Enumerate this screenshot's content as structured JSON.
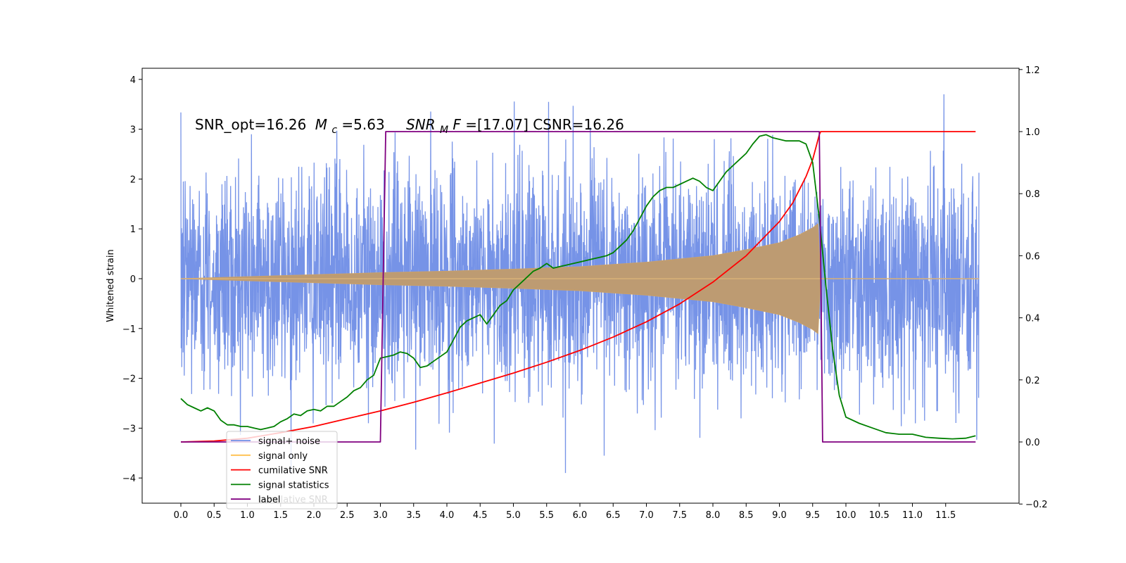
{
  "chart_data": {
    "type": "line",
    "title": "SNR_opt=16.26 $M_c$=5.63   $SNR_MF$=[17.07] CSNR=16.26",
    "title_parts": {
      "snr_opt": "SNR_opt=16.26",
      "mc_symbol": "M",
      "mc_sub": "c",
      "mc_value": "=5.63",
      "snrmf_symbol": "SNR",
      "snrmf_sub": "M",
      "snrmf_tail": "F",
      "snrmf_value": "=[17.07] CSNR=16.26"
    },
    "ylabel": "Whitened strain",
    "xlabel": "",
    "xlim": [
      -0.6,
      12.6
    ],
    "ylim": [
      -4.5,
      4.2
    ],
    "y2lim": [
      -0.2,
      1.2
    ],
    "x_ticks": [
      0.0,
      0.5,
      1.0,
      1.5,
      2.0,
      2.5,
      3.0,
      3.5,
      4.0,
      4.5,
      5.0,
      5.5,
      6.0,
      6.5,
      7.0,
      7.5,
      8.0,
      8.5,
      9.0,
      9.5,
      10.0,
      10.5,
      11.0,
      11.5
    ],
    "x_tick_labels": [
      "0.0",
      "0.5",
      "1.0",
      "1.5",
      "2.0",
      "2.5",
      "3.0",
      "3.5",
      "4.0",
      "4.5",
      "5.0",
      "5.5",
      "6.0",
      "6.5",
      "7.0",
      "7.5",
      "8.0",
      "8.5",
      "9.0",
      "9.5",
      "10.0",
      "10.5",
      "11.0",
      "11.5"
    ],
    "y_ticks": [
      4,
      3,
      2,
      1,
      0,
      -1,
      -2,
      -3,
      -4
    ],
    "y_tick_labels": [
      "4",
      "3",
      "2",
      "1",
      "0",
      "−1",
      "−2",
      "−3",
      "−4"
    ],
    "y2_ticks": [
      1.2,
      1.0,
      0.8,
      0.6,
      0.4,
      0.2,
      0.0,
      -0.2
    ],
    "y2_tick_labels": [
      "1.2",
      "1.0",
      "0.8",
      "0.6",
      "0.4",
      "0.2",
      "0.0",
      "−0.2"
    ],
    "grid": false,
    "legend_position": "lower-left",
    "legend": [
      {
        "label": "signal+ noise",
        "color": "#6f8de6"
      },
      {
        "label": "signal only",
        "color": "#ffc04d"
      },
      {
        "label": "cumilative SNR",
        "color": "#ff0000"
      },
      {
        "label": "signal statistics",
        "color": "#008000"
      },
      {
        "label": "label",
        "color": "#800080"
      }
    ],
    "legend_ghost_text": "cumilative SNR",
    "series": [
      {
        "name": "signal+ noise",
        "axis": "left",
        "color": "#6f8de6",
        "style": "dense noise trace",
        "x_range": [
          0.0,
          12.0
        ],
        "envelope_typical": [
          -2.0,
          2.0
        ],
        "min": -4.1,
        "max": 3.82
      },
      {
        "name": "signal only",
        "axis": "left",
        "color": "#ffc04d",
        "style": "chirp",
        "x_range": [
          3.05,
          9.62
        ],
        "envelope": {
          "x": [
            0.0,
            3.0,
            4.0,
            5.0,
            6.0,
            7.0,
            8.0,
            8.5,
            9.0,
            9.3,
            9.5,
            9.58,
            9.62
          ],
          "y": [
            0.0,
            0.12,
            0.15,
            0.19,
            0.24,
            0.33,
            0.46,
            0.58,
            0.72,
            0.88,
            1.02,
            1.1,
            0.0
          ]
        }
      },
      {
        "name": "cumilative SNR",
        "axis": "right",
        "color": "#ff0000",
        "x": [
          0.0,
          0.5,
          1.0,
          1.5,
          2.0,
          2.5,
          3.0,
          3.5,
          4.0,
          4.5,
          5.0,
          5.5,
          6.0,
          6.5,
          7.0,
          7.5,
          8.0,
          8.5,
          9.0,
          9.2,
          9.4,
          9.5,
          9.55,
          9.6,
          9.62,
          11.95
        ],
        "y": [
          0.0,
          0.003,
          0.012,
          0.03,
          0.05,
          0.075,
          0.1,
          0.128,
          0.158,
          0.19,
          0.222,
          0.257,
          0.295,
          0.338,
          0.387,
          0.445,
          0.515,
          0.6,
          0.71,
          0.77,
          0.855,
          0.91,
          0.95,
          0.99,
          1.0,
          1.0
        ]
      },
      {
        "name": "signal statistics",
        "axis": "right",
        "color": "#008000",
        "x": [
          0.0,
          0.1,
          0.2,
          0.3,
          0.4,
          0.5,
          0.6,
          0.7,
          0.8,
          0.9,
          1.0,
          1.1,
          1.2,
          1.3,
          1.4,
          1.5,
          1.6,
          1.7,
          1.8,
          1.9,
          2.0,
          2.1,
          2.2,
          2.3,
          2.4,
          2.5,
          2.6,
          2.7,
          2.8,
          2.9,
          3.0,
          3.1,
          3.2,
          3.3,
          3.4,
          3.5,
          3.6,
          3.7,
          3.8,
          3.9,
          4.0,
          4.1,
          4.2,
          4.3,
          4.4,
          4.5,
          4.6,
          4.7,
          4.8,
          4.9,
          5.0,
          5.1,
          5.2,
          5.3,
          5.4,
          5.5,
          5.6,
          5.7,
          5.8,
          5.9,
          6.0,
          6.1,
          6.2,
          6.3,
          6.4,
          6.5,
          6.6,
          6.7,
          6.8,
          6.9,
          7.0,
          7.1,
          7.2,
          7.3,
          7.4,
          7.5,
          7.6,
          7.7,
          7.8,
          7.9,
          8.0,
          8.1,
          8.2,
          8.3,
          8.4,
          8.5,
          8.6,
          8.7,
          8.8,
          8.9,
          9.0,
          9.1,
          9.2,
          9.3,
          9.4,
          9.5,
          9.6,
          9.7,
          9.8,
          9.9,
          10.0,
          10.2,
          10.4,
          10.6,
          10.8,
          11.0,
          11.2,
          11.4,
          11.6,
          11.8,
          11.95
        ],
        "y": [
          0.14,
          0.12,
          0.11,
          0.1,
          0.11,
          0.1,
          0.07,
          0.055,
          0.055,
          0.05,
          0.05,
          0.045,
          0.04,
          0.045,
          0.05,
          0.065,
          0.075,
          0.09,
          0.085,
          0.1,
          0.105,
          0.1,
          0.115,
          0.115,
          0.13,
          0.145,
          0.165,
          0.175,
          0.2,
          0.215,
          0.27,
          0.275,
          0.28,
          0.29,
          0.285,
          0.27,
          0.24,
          0.245,
          0.26,
          0.275,
          0.29,
          0.33,
          0.37,
          0.39,
          0.4,
          0.41,
          0.38,
          0.41,
          0.44,
          0.455,
          0.49,
          0.51,
          0.53,
          0.55,
          0.56,
          0.575,
          0.56,
          0.565,
          0.57,
          0.575,
          0.58,
          0.585,
          0.59,
          0.595,
          0.6,
          0.61,
          0.63,
          0.65,
          0.68,
          0.72,
          0.76,
          0.79,
          0.81,
          0.82,
          0.82,
          0.83,
          0.84,
          0.85,
          0.84,
          0.82,
          0.81,
          0.84,
          0.87,
          0.89,
          0.91,
          0.93,
          0.96,
          0.985,
          0.99,
          0.98,
          0.975,
          0.97,
          0.97,
          0.97,
          0.96,
          0.9,
          0.72,
          0.5,
          0.3,
          0.15,
          0.08,
          0.06,
          0.045,
          0.03,
          0.025,
          0.025,
          0.015,
          0.012,
          0.01,
          0.012,
          0.02
        ]
      },
      {
        "name": "label",
        "axis": "right",
        "color": "#800080",
        "x": [
          0.0,
          3.0,
          3.08,
          9.6,
          9.65,
          11.95
        ],
        "y": [
          0.0,
          0.0,
          1.0,
          1.0,
          0.0,
          0.0
        ]
      }
    ]
  }
}
